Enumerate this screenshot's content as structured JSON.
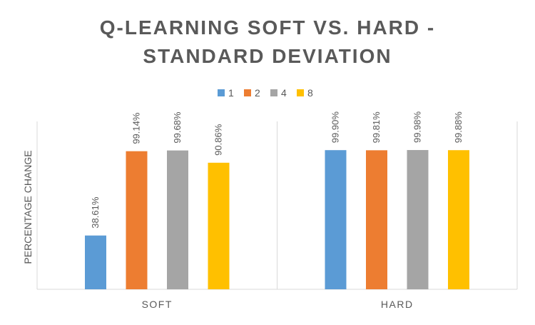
{
  "chart_data": {
    "type": "bar",
    "title_lines": [
      "Q-LEARNING SOFT VS. HARD -",
      "STANDARD DEVIATION"
    ],
    "xlabel": "",
    "ylabel": "PERCENTAGE CHANGE",
    "categories": [
      "SOFT",
      "HARD"
    ],
    "ylim": [
      0,
      100
    ],
    "grid": false,
    "legend_position": "top",
    "series": [
      {
        "name": "1",
        "color": "#5B9BD5",
        "values": [
          38.61,
          99.9
        ],
        "labels": [
          "38.61%",
          "99.90%"
        ]
      },
      {
        "name": "2",
        "color": "#ED7D31",
        "values": [
          99.14,
          99.81
        ],
        "labels": [
          "99.14%",
          "99.81%"
        ]
      },
      {
        "name": "4",
        "color": "#A5A5A5",
        "values": [
          99.68,
          99.98
        ],
        "labels": [
          "99.68%",
          "99.98%"
        ]
      },
      {
        "name": "8",
        "color": "#FFC000",
        "values": [
          90.86,
          99.88
        ],
        "labels": [
          "90.86%",
          "99.88%"
        ]
      }
    ]
  }
}
